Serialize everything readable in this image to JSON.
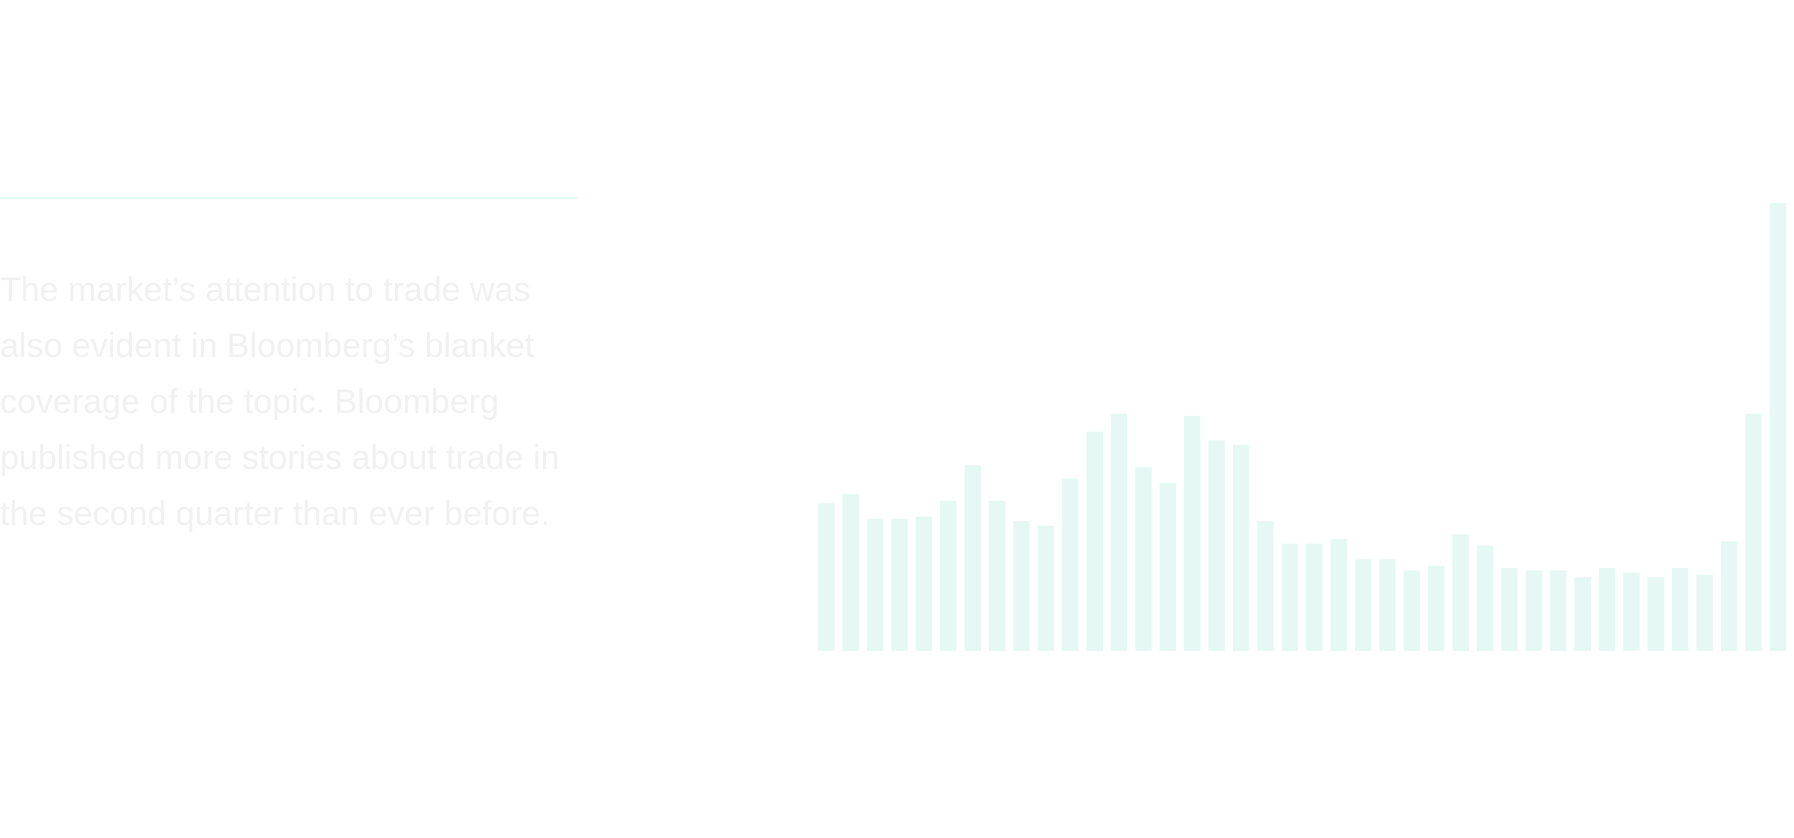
{
  "divider_color": "#e6f8f4",
  "body_text": "The market’s attention to trade was also evident in Bloomberg’s blanket coverage of the topic. Bloomberg published more stories about trade in the second quarter than ever before.",
  "bar_color": "#e6f8f4",
  "text_color": "#f1f1f1",
  "chart_data": {
    "type": "bar",
    "title": "",
    "xlabel": "",
    "ylabel": "",
    "grid": false,
    "legend": "none",
    "ylim": [
      0,
      100
    ],
    "values": [
      33,
      35,
      29.5,
      29.5,
      30,
      33.5,
      41.5,
      33.5,
      29,
      28,
      38.5,
      49,
      53,
      41,
      37.5,
      52.5,
      47,
      46,
      29,
      24,
      24,
      25,
      20.5,
      20.5,
      18,
      19,
      26,
      23.5,
      18.5,
      18,
      18,
      16.5,
      18.5,
      17.5,
      16.5,
      18.5,
      17,
      24.5,
      53,
      100
    ]
  }
}
